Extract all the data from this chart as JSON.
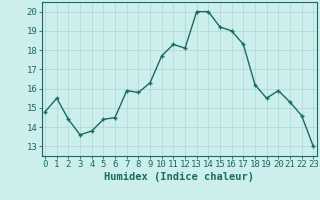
{
  "xlabel": "Humidex (Indice chaleur)",
  "x": [
    0,
    1,
    2,
    3,
    4,
    5,
    6,
    7,
    8,
    9,
    10,
    11,
    12,
    13,
    14,
    15,
    16,
    17,
    18,
    19,
    20,
    21,
    22,
    23
  ],
  "y": [
    14.8,
    15.5,
    14.4,
    13.6,
    13.8,
    14.4,
    14.5,
    15.9,
    15.8,
    16.3,
    17.7,
    18.3,
    18.1,
    20.0,
    20.0,
    19.2,
    19.0,
    18.3,
    16.2,
    15.5,
    15.9,
    15.3,
    14.6,
    13.0
  ],
  "line_color": "#1a6b5e",
  "marker": "+",
  "bg_color": "#cceeed",
  "grid_color": "#aad8d5",
  "ylim": [
    12.5,
    20.5
  ],
  "yticks": [
    13,
    14,
    15,
    16,
    17,
    18,
    19,
    20
  ],
  "xticks": [
    0,
    1,
    2,
    3,
    4,
    5,
    6,
    7,
    8,
    9,
    10,
    11,
    12,
    13,
    14,
    15,
    16,
    17,
    18,
    19,
    20,
    21,
    22,
    23
  ],
  "xlabel_fontsize": 7.5,
  "tick_fontsize": 6.5,
  "line_width": 1.0,
  "marker_size": 3.5,
  "marker_edge_width": 1.0
}
